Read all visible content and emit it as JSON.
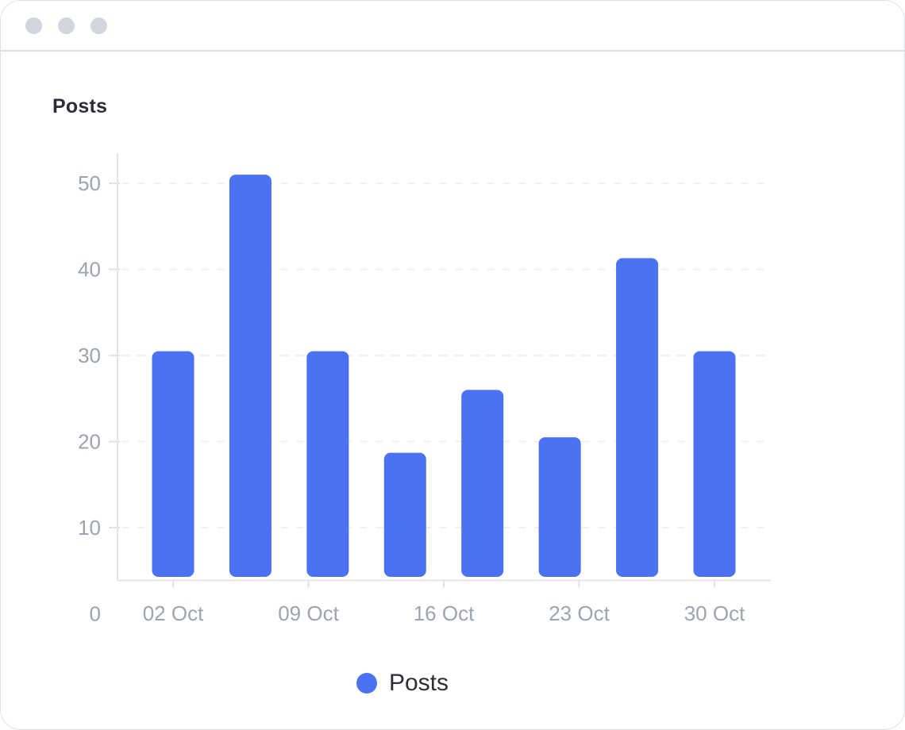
{
  "panel": {
    "title": "Posts"
  },
  "chart_data": {
    "type": "bar",
    "title": "Posts",
    "series": [
      {
        "name": "Posts",
        "values": [
          30.5,
          51,
          30.5,
          18.7,
          26,
          20.5,
          41.3,
          30.5
        ]
      }
    ],
    "x_positions_days": [
      2,
      6,
      10,
      14,
      18,
      22,
      26,
      30
    ],
    "x_month": "Oct",
    "x_tick_labels": [
      "02 Oct",
      "09 Oct",
      "16 Oct",
      "23 Oct",
      "30 Oct"
    ],
    "y_ticks": [
      0,
      10,
      20,
      30,
      40,
      50
    ],
    "y_tick_labels": [
      "0",
      "10",
      "20",
      "30",
      "40",
      "50"
    ],
    "ylim": [
      0,
      55
    ],
    "grid": "horizontal-dashed",
    "legend": {
      "label": "Posts",
      "position": "bottom"
    }
  },
  "colors": {
    "bar": "#4b72f2",
    "axis_label": "#9ea3b0",
    "grid_line": "#edeff4",
    "axis_line": "#e2e5eb",
    "tick_line": "#dfe2e9",
    "title_text": "#2b2e35",
    "legend_text": "#2c2f36",
    "titlebar_dot": "#d3d5dc",
    "card_border": "#dde0e9"
  }
}
